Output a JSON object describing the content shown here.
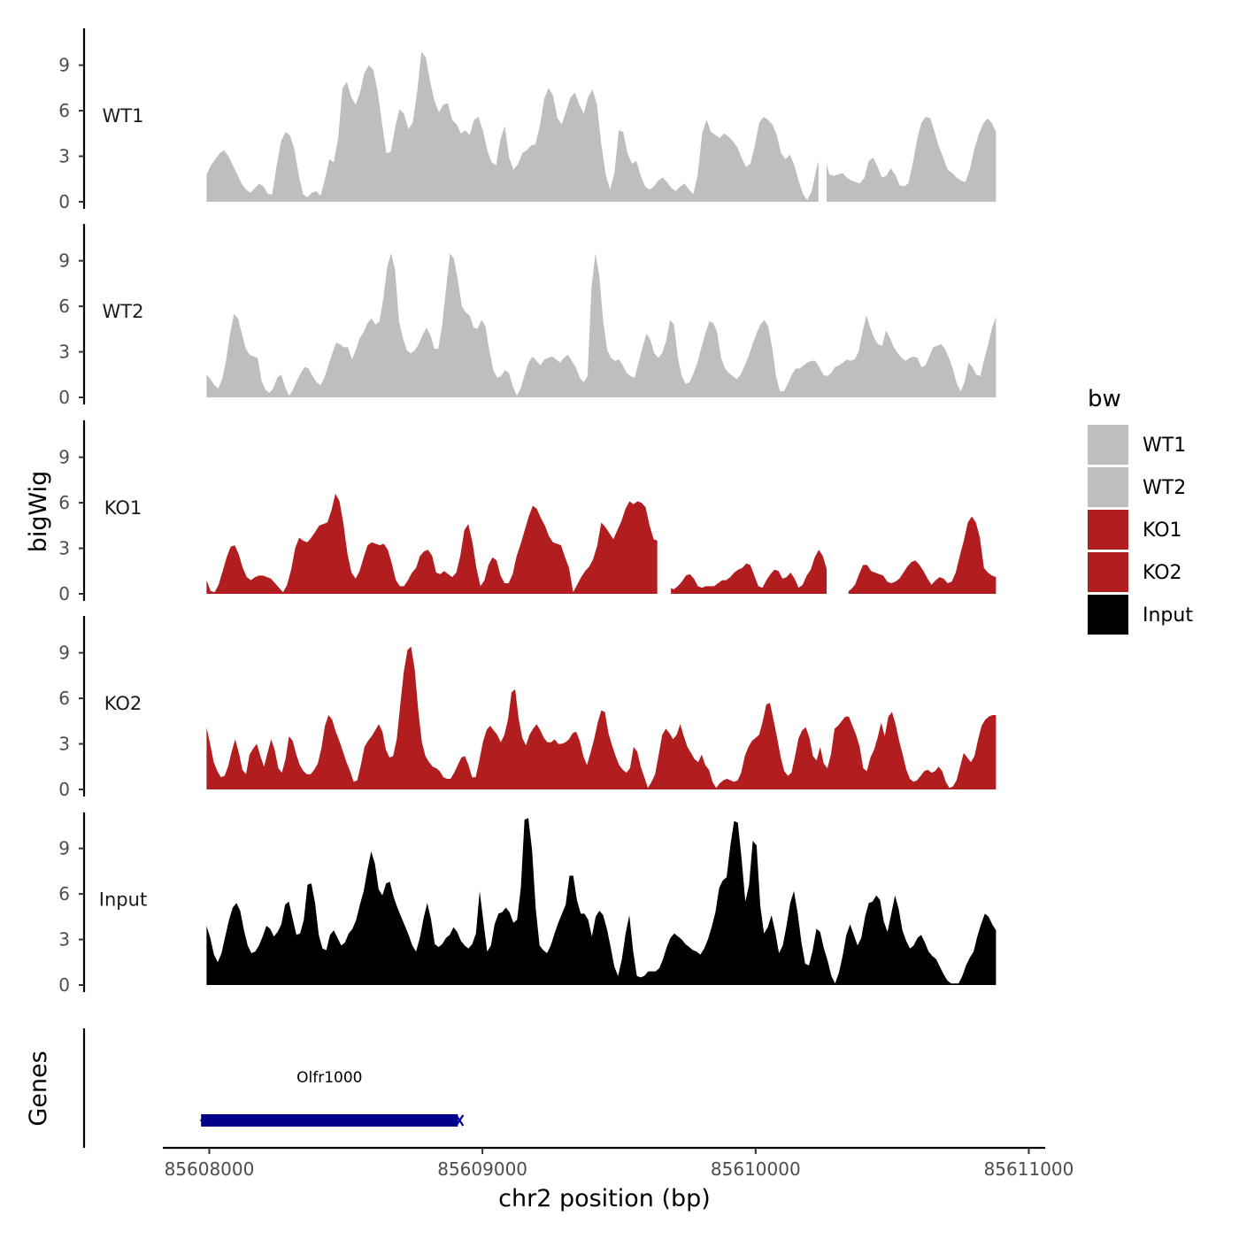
{
  "chart_data": {
    "type": "area",
    "ylabel": "bigWig",
    "xlabel": "chr2 position (bp)",
    "xlim": [
      85607830,
      85611060
    ],
    "ylim": [
      0,
      11.5
    ],
    "y_ticks": [
      "0",
      "3",
      "6",
      "9"
    ],
    "x_ticks": [
      {
        "value": 85608000,
        "label": "85608000"
      },
      {
        "value": 85609000,
        "label": "85609000"
      },
      {
        "value": 85610000,
        "label": "85610000"
      },
      {
        "value": 85611000,
        "label": "85611000"
      }
    ],
    "data_range": [
      85607990,
      85610880
    ],
    "tracks": [
      {
        "name": "WT1",
        "color": "#bebebe",
        "values": [
          1.8,
          2.4,
          2.8,
          3.2,
          3.4,
          3.0,
          2.4,
          1.8,
          1.2,
          0.8,
          0.6,
          0.9,
          1.2,
          1.0,
          0.5,
          0.5,
          2.4,
          4.0,
          4.6,
          4.4,
          3.5,
          1.8,
          0.5,
          0.3,
          0.6,
          0.7,
          0.4,
          1.5,
          2.8,
          2.6,
          4.2,
          7.5,
          7.9,
          6.9,
          6.4,
          7.2,
          8.5,
          9.0,
          8.7,
          7.3,
          5.2,
          3.2,
          3.3,
          4.9,
          6.1,
          5.8,
          4.8,
          5.2,
          7.2,
          9.9,
          9.5,
          7.9,
          6.6,
          5.9,
          6.4,
          6.5,
          5.4,
          5.1,
          4.5,
          4.7,
          4.4,
          5.4,
          5.6,
          4.7,
          3.4,
          2.6,
          2.4,
          4.1,
          5.0,
          2.9,
          2.1,
          2.5,
          3.2,
          3.4,
          3.7,
          3.8,
          5.0,
          6.8,
          7.5,
          7.0,
          5.5,
          5.1,
          6.0,
          6.9,
          7.2,
          6.4,
          5.8,
          6.9,
          7.4,
          6.4,
          3.8,
          1.8,
          0.8,
          1.9,
          4.7,
          4.6,
          3.2,
          2.5,
          2.7,
          1.7,
          1.0,
          0.8,
          1.0,
          1.4,
          1.6,
          1.3,
          0.9,
          0.7,
          1.0,
          1.2,
          0.8,
          0.5,
          1.8,
          4.5,
          5.4,
          4.6,
          4.4,
          4.2,
          4.5,
          4.3,
          4.0,
          3.6,
          2.9,
          2.3,
          2.5,
          3.7,
          5.2,
          5.6,
          5.4,
          5.1,
          4.4,
          3.2,
          2.8,
          3.1,
          2.4,
          1.4,
          0.5,
          0.1,
          0.7,
          2.1,
          3.2,
          2.9,
          1.8,
          1.7,
          1.8,
          1.9,
          1.6,
          1.4,
          1.3,
          1.2,
          1.6,
          2.7,
          2.9,
          2.3,
          1.6,
          1.7,
          2.2,
          1.8,
          1.1,
          1.0,
          1.2,
          2.5,
          4.1,
          5.2,
          5.6,
          5.5,
          4.6,
          3.6,
          2.9,
          2.1,
          1.9,
          1.6,
          1.4,
          1.3,
          2.1,
          3.4,
          4.4,
          5.1,
          5.5,
          5.2,
          4.6
        ],
        "gaps": [
          [
            85610230,
            85610260
          ]
        ]
      },
      {
        "name": "WT2",
        "color": "#bebebe",
        "values": [
          1.5,
          1.2,
          0.8,
          0.6,
          1.2,
          2.5,
          4.2,
          5.5,
          5.2,
          4.2,
          3.2,
          2.8,
          2.7,
          2.6,
          1.1,
          0.5,
          0.3,
          0.6,
          1.3,
          1.5,
          0.7,
          0.1,
          0.5,
          1.1,
          1.6,
          2.0,
          1.9,
          1.4,
          1.0,
          0.8,
          1.3,
          2.1,
          2.9,
          3.6,
          3.5,
          3.3,
          3.3,
          2.5,
          3.1,
          3.9,
          4.3,
          4.9,
          5.2,
          4.8,
          5.0,
          6.5,
          8.6,
          9.5,
          8.4,
          5.0,
          3.9,
          3.1,
          2.9,
          3.1,
          3.5,
          4.1,
          4.6,
          4.1,
          3.2,
          3.2,
          4.8,
          7.2,
          9.5,
          9.1,
          7.7,
          6.0,
          5.6,
          5.4,
          4.6,
          4.5,
          5.1,
          4.7,
          3.1,
          1.8,
          1.3,
          1.4,
          1.8,
          1.6,
          0.7,
          0.1,
          0.6,
          1.5,
          2.3,
          2.7,
          2.4,
          2.1,
          2.5,
          2.6,
          2.7,
          2.5,
          2.3,
          2.6,
          2.8,
          2.4,
          2.0,
          1.3,
          1.0,
          1.4,
          7.2,
          9.5,
          8.0,
          5.0,
          3.1,
          2.6,
          2.4,
          2.5,
          2.1,
          1.6,
          1.4,
          1.3,
          2.3,
          3.3,
          4.2,
          3.8,
          2.9,
          2.6,
          2.9,
          3.7,
          5.1,
          4.8,
          2.6,
          1.4,
          0.9,
          1.0,
          1.6,
          2.3,
          3.3,
          4.2,
          5.0,
          4.9,
          4.3,
          2.6,
          1.9,
          1.6,
          1.4,
          1.2,
          1.5,
          2.1,
          2.7,
          3.5,
          4.2,
          4.8,
          5.1,
          4.7,
          3.3,
          1.4,
          0.4,
          0.4,
          0.9,
          1.5,
          1.9,
          1.9,
          2.1,
          2.3,
          2.4,
          2.4,
          2.0,
          1.5,
          1.4,
          1.6,
          2.0,
          2.1,
          2.3,
          2.5,
          2.4,
          2.5,
          3.0,
          4.3,
          5.4,
          4.6,
          3.9,
          3.5,
          3.4,
          4.4,
          3.9,
          3.3,
          2.9,
          2.6,
          2.4,
          2.6,
          2.7,
          2.6,
          2.0,
          2.1,
          2.7,
          3.3,
          3.4,
          3.5,
          3.2,
          2.6,
          1.9,
          0.9,
          0.4,
          1.0,
          2.3,
          2.0,
          1.5,
          1.4,
          2.5,
          3.5,
          4.6,
          5.3
        ]
      },
      {
        "name": "KO1",
        "color": "#b21d1f",
        "values": [
          0.9,
          0.2,
          0.1,
          0.6,
          1.5,
          2.4,
          3.1,
          3.2,
          2.6,
          1.7,
          1.1,
          0.9,
          1.1,
          1.2,
          1.2,
          1.1,
          1.0,
          0.7,
          0.4,
          0.1,
          0.6,
          1.6,
          3.0,
          3.7,
          3.5,
          3.4,
          3.7,
          4.1,
          4.5,
          4.6,
          4.7,
          5.5,
          6.6,
          6.1,
          4.6,
          2.6,
          1.4,
          1.0,
          1.5,
          2.4,
          3.2,
          3.4,
          3.3,
          3.2,
          3.3,
          2.9,
          2.0,
          0.9,
          0.5,
          0.5,
          0.9,
          1.4,
          1.7,
          2.5,
          2.8,
          2.9,
          2.5,
          1.4,
          1.3,
          1.5,
          1.3,
          1.1,
          1.4,
          2.5,
          4.2,
          4.6,
          3.4,
          1.7,
          0.5,
          0.9,
          1.9,
          2.4,
          2.2,
          1.2,
          0.7,
          0.7,
          1.3,
          2.5,
          3.3,
          4.2,
          5.1,
          5.8,
          5.6,
          5.0,
          4.5,
          3.8,
          3.4,
          3.3,
          3.2,
          2.4,
          1.7,
          0.1,
          0.6,
          1.1,
          1.5,
          1.8,
          2.3,
          3.2,
          4.7,
          4.4,
          4.0,
          3.6,
          4.2,
          4.8,
          5.6,
          6.1,
          5.9,
          6.1,
          6.0,
          5.7,
          4.5,
          3.6,
          3.5,
          3.5,
          1.6,
          0.4,
          0.3,
          0.5,
          0.8,
          1.2,
          1.3,
          1.0,
          0.5,
          0.4,
          0.5,
          0.5,
          0.5,
          0.7,
          0.9,
          0.9,
          1.1,
          1.4,
          1.6,
          1.7,
          2.0,
          1.9,
          1.2,
          0.5,
          0.4,
          0.9,
          1.3,
          1.6,
          1.5,
          1.0,
          1.1,
          1.4,
          1.0,
          0.4,
          0.6,
          1.2,
          1.6,
          2.4,
          2.9,
          2.5,
          1.6,
          1.1,
          0.8,
          0.4,
          0.1,
          0.1,
          0.3,
          0.6,
          1.3,
          1.9,
          1.9,
          1.5,
          1.4,
          1.3,
          1.2,
          0.8,
          0.7,
          0.8,
          1.0,
          1.4,
          1.8,
          2.1,
          2.2,
          1.9,
          1.5,
          1.0,
          0.6,
          0.9,
          1.1,
          1.0,
          0.7,
          0.8,
          1.4,
          2.5,
          3.5,
          4.7,
          5.1,
          4.7,
          3.7,
          1.7,
          1.4,
          1.2,
          1.1
        ],
        "gaps": [
          [
            85609640,
            85609690
          ],
          [
            85610260,
            85610340
          ]
        ]
      },
      {
        "name": "KO2",
        "color": "#b21d1f",
        "values": [
          4.1,
          3.0,
          1.8,
          1.2,
          0.8,
          0.9,
          1.5,
          2.5,
          3.3,
          2.4,
          1.3,
          1.0,
          2.3,
          2.7,
          3.0,
          2.2,
          1.5,
          2.4,
          3.3,
          2.6,
          1.4,
          1.1,
          2.0,
          3.5,
          3.2,
          2.3,
          1.6,
          1.2,
          1.0,
          1.0,
          1.3,
          1.7,
          2.7,
          4.2,
          4.9,
          4.6,
          3.8,
          3.2,
          2.5,
          1.8,
          1.2,
          0.5,
          0.6,
          1.6,
          2.8,
          3.2,
          3.5,
          3.9,
          4.3,
          3.8,
          2.6,
          2.1,
          2.2,
          3.3,
          5.6,
          7.8,
          9.2,
          9.4,
          7.9,
          5.2,
          3.1,
          2.2,
          1.8,
          1.5,
          1.4,
          1.2,
          0.8,
          0.7,
          0.7,
          1.1,
          1.6,
          2.1,
          2.2,
          1.6,
          0.8,
          0.8,
          1.9,
          3.1,
          3.9,
          4.2,
          3.9,
          3.6,
          3.1,
          3.6,
          4.6,
          6.4,
          6.6,
          4.6,
          3.4,
          2.9,
          3.6,
          4.0,
          4.3,
          3.9,
          3.4,
          3.1,
          3.1,
          3.3,
          3.0,
          3.0,
          3.1,
          3.3,
          3.7,
          3.8,
          3.2,
          2.2,
          1.6,
          2.4,
          3.3,
          4.4,
          5.2,
          5.1,
          3.7,
          2.9,
          2.2,
          1.6,
          1.3,
          1.1,
          1.4,
          2.8,
          2.5,
          1.5,
          0.8,
          0.1,
          0.5,
          1.0,
          2.3,
          3.6,
          4.0,
          3.7,
          3.3,
          3.6,
          4.3,
          3.5,
          2.8,
          2.4,
          2.0,
          1.8,
          2.3,
          1.6,
          1.3,
          0.5,
          0.1,
          0.4,
          0.6,
          0.7,
          0.6,
          0.5,
          0.6,
          1.1,
          2.2,
          2.8,
          3.2,
          3.4,
          3.6,
          4.5,
          5.6,
          5.7,
          4.6,
          3.4,
          2.1,
          1.2,
          0.9,
          1.1,
          2.2,
          3.4,
          3.9,
          4.1,
          3.4,
          2.2,
          1.9,
          2.8,
          1.7,
          1.4,
          2.3,
          4.0,
          4.2,
          4.5,
          4.8,
          4.8,
          4.2,
          3.6,
          2.8,
          1.4,
          1.2,
          2.1,
          2.6,
          3.4,
          4.4,
          3.5,
          4.8,
          5.1,
          4.3,
          3.2,
          2.3,
          1.3,
          0.7,
          0.5,
          0.6,
          0.9,
          1.2,
          1.3,
          1.1,
          1.2,
          1.5,
          1.2,
          0.5,
          0.1,
          0.2,
          0.6,
          1.5,
          2.4,
          2.1,
          1.8,
          2.2,
          3.3,
          4.2,
          4.6,
          4.8,
          4.9,
          4.9
        ]
      },
      {
        "name": "Input",
        "color": "#000000",
        "values": [
          3.9,
          3.1,
          2.0,
          1.5,
          2.1,
          3.2,
          4.3,
          5.1,
          5.4,
          4.9,
          3.6,
          2.6,
          2.1,
          2.2,
          2.6,
          3.2,
          3.9,
          3.7,
          3.2,
          3.5,
          4.0,
          5.3,
          5.5,
          4.4,
          3.3,
          3.4,
          4.3,
          6.6,
          6.7,
          5.4,
          3.3,
          2.4,
          2.3,
          3.3,
          3.6,
          3.1,
          2.6,
          2.8,
          3.4,
          3.7,
          4.3,
          5.3,
          6.2,
          7.6,
          8.8,
          8.0,
          6.3,
          5.9,
          6.7,
          6.8,
          5.8,
          5.1,
          4.5,
          3.9,
          3.3,
          2.6,
          2.2,
          3.1,
          4.4,
          5.4,
          4.3,
          2.7,
          2.5,
          2.7,
          3.1,
          3.3,
          3.8,
          3.5,
          2.9,
          2.6,
          2.4,
          2.7,
          3.4,
          6.2,
          4.2,
          2.2,
          2.6,
          4.0,
          4.7,
          4.8,
          5.1,
          4.8,
          4.1,
          4.3,
          6.4,
          10.9,
          11.0,
          8.9,
          5.0,
          2.6,
          2.3,
          2.1,
          2.6,
          3.4,
          4.1,
          4.7,
          5.3,
          7.2,
          7.2,
          5.6,
          4.7,
          4.7,
          4.3,
          3.2,
          4.5,
          4.9,
          4.6,
          3.7,
          2.5,
          1.2,
          0.6,
          1.7,
          3.4,
          4.6,
          2.3,
          0.6,
          0.5,
          0.6,
          0.9,
          0.9,
          0.9,
          1.1,
          1.7,
          2.5,
          3.1,
          3.4,
          3.2,
          3.0,
          2.7,
          2.5,
          2.3,
          2.2,
          2.0,
          2.4,
          3.0,
          3.8,
          4.8,
          6.4,
          6.9,
          7.1,
          9.2,
          10.8,
          10.7,
          8.3,
          5.5,
          6.6,
          9.5,
          9.2,
          5.2,
          3.4,
          3.8,
          4.6,
          3.5,
          2.1,
          2.6,
          3.9,
          5.4,
          6.2,
          4.7,
          2.8,
          1.4,
          1.3,
          2.3,
          3.7,
          3.5,
          2.4,
          1.6,
          0.6,
          0.1,
          0.8,
          1.9,
          3.3,
          4.0,
          3.3,
          2.6,
          3.1,
          4.5,
          5.4,
          5.5,
          5.9,
          5.6,
          4.2,
          3.5,
          4.7,
          5.9,
          5.0,
          3.6,
          2.9,
          2.4,
          2.6,
          3.1,
          3.3,
          2.8,
          2.2,
          1.9,
          1.7,
          1.2,
          0.7,
          0.3,
          0.1,
          0.1,
          0.1,
          0.6,
          1.3,
          1.8,
          2.2,
          3.2,
          4.0,
          4.7,
          4.5,
          4.0,
          3.6
        ]
      }
    ],
    "genes_panel_label": "Genes",
    "genes": [
      {
        "name": "Olfr1000",
        "start": 85607970,
        "end": 85608910,
        "strand": "-",
        "color": "#00008b"
      }
    ],
    "legend": {
      "title": "bw",
      "position": "right",
      "items": [
        {
          "label": "WT1",
          "color": "#bebebe"
        },
        {
          "label": "WT2",
          "color": "#bebebe"
        },
        {
          "label": "KO1",
          "color": "#b21d1f"
        },
        {
          "label": "KO2",
          "color": "#b21d1f"
        },
        {
          "label": "Input",
          "color": "#000000"
        }
      ]
    }
  }
}
